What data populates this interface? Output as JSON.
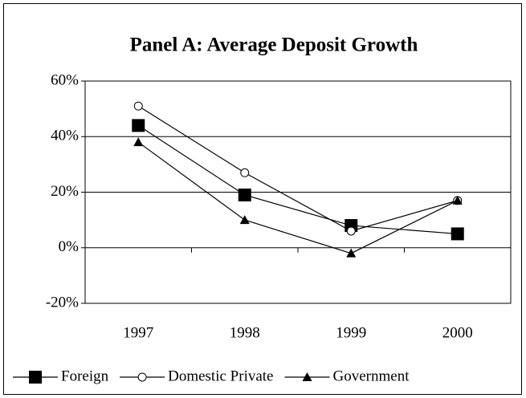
{
  "chart_data": {
    "type": "line",
    "title": "Panel A:  Average Deposit Growth",
    "categories": [
      "1997",
      "1998",
      "1999",
      "2000"
    ],
    "series": [
      {
        "name": "Foreign",
        "color": "#000000",
        "marker": "square",
        "values": [
          44,
          19,
          8,
          5
        ]
      },
      {
        "name": "Domestic Private",
        "color": "#000000",
        "marker": "circle",
        "values": [
          51,
          27,
          6,
          17
        ]
      },
      {
        "name": "Government",
        "color": "#000000",
        "marker": "triangle",
        "values": [
          38,
          10,
          -2,
          17
        ]
      }
    ],
    "ylim": [
      -20,
      60
    ],
    "yticks": [
      {
        "value": -20,
        "label": "-20%"
      },
      {
        "value": 0,
        "label": "0%"
      },
      {
        "value": 20,
        "label": "20%"
      },
      {
        "value": 40,
        "label": "40%"
      },
      {
        "value": 60,
        "label": "60%"
      }
    ],
    "grid": true,
    "legend": "bottom"
  }
}
